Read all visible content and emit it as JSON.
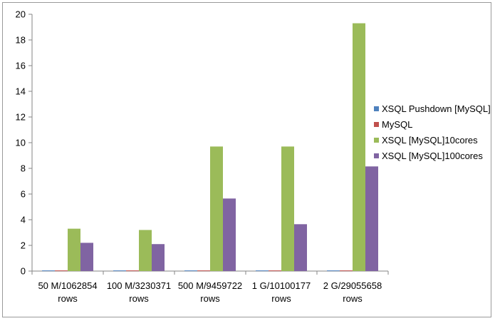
{
  "chart_data": {
    "type": "bar",
    "categories": [
      [
        "50 M/1062854",
        "rows"
      ],
      [
        "100 M/3230371",
        "rows"
      ],
      [
        "500 M/9459722",
        "rows"
      ],
      [
        "1 G/10100177",
        "rows"
      ],
      [
        "2 G/29055658",
        "rows"
      ]
    ],
    "series": [
      {
        "name": "XSQL Pushdown [MySQL]",
        "color": "#4f81bd",
        "values": [
          0.05,
          0.05,
          0.05,
          0.05,
          0.05
        ]
      },
      {
        "name": "MySQL",
        "color": "#c0504d",
        "values": [
          0.05,
          0.05,
          0.05,
          0.05,
          0.05
        ]
      },
      {
        "name": "XSQL [MySQL]10cores",
        "color": "#9bbb59",
        "values": [
          3.3,
          3.2,
          9.7,
          9.7,
          19.3
        ]
      },
      {
        "name": "XSQL [MySQL]100cores",
        "color": "#8064a2",
        "values": [
          2.2,
          2.1,
          5.65,
          3.65,
          8.15
        ]
      }
    ],
    "y_ticks": [
      "0",
      "2",
      "4",
      "6",
      "8",
      "10",
      "12",
      "14",
      "16",
      "18",
      "20"
    ],
    "ylim": [
      0,
      20
    ],
    "y_step": 2,
    "grid": false,
    "legend_position": "right"
  }
}
